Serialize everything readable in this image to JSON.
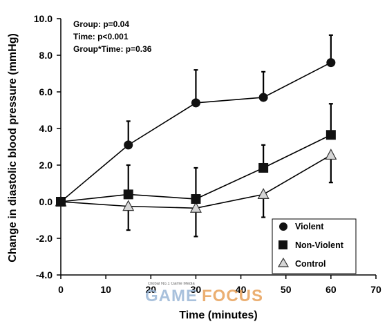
{
  "chart_data": {
    "type": "line",
    "xlabel": "Time (minutes)",
    "ylabel": "Change in diastolic blood pressure (mmHg)",
    "xlim": [
      0,
      70
    ],
    "ylim": [
      -4.0,
      10.0
    ],
    "x_ticks": [
      "0",
      "10",
      "20",
      "30",
      "40",
      "50",
      "60",
      "70"
    ],
    "y_ticks": [
      "-4.0",
      "-2.0",
      "0.0",
      "2.0",
      "4.0",
      "6.0",
      "8.0",
      "10.0"
    ],
    "grid": false,
    "legend_position": "bottom-right",
    "annotations": [
      "Group: p=0.04",
      "Time: p<0.001",
      "Group*Time: p=0.36"
    ],
    "series": [
      {
        "name": "Violent",
        "marker": "circle",
        "x": [
          0,
          15,
          30,
          45,
          60
        ],
        "y": [
          0.0,
          3.1,
          5.4,
          5.7,
          7.6
        ],
        "error": [
          0,
          1.3,
          1.8,
          1.4,
          1.5
        ],
        "error_direction": "up"
      },
      {
        "name": "Non-Violent",
        "marker": "square",
        "x": [
          0,
          15,
          30,
          45,
          60
        ],
        "y": [
          0.0,
          0.4,
          0.15,
          1.85,
          3.65
        ],
        "error": [
          0,
          1.6,
          1.7,
          1.25,
          1.7
        ],
        "error_direction": "up"
      },
      {
        "name": "Control",
        "marker": "triangle",
        "x": [
          0,
          15,
          30,
          45,
          60
        ],
        "y": [
          0.0,
          -0.25,
          -0.35,
          0.4,
          2.55
        ],
        "error": [
          0,
          1.3,
          1.55,
          1.25,
          1.5
        ],
        "error_direction": "down"
      }
    ]
  },
  "watermark": {
    "tagline": "Global No.1 Game Media",
    "word_a": "GAME",
    "word_b": "FOCUS",
    "color_a": "#9bb7d6",
    "color_b": "#e8a25a"
  },
  "colors": {
    "line": "#000000",
    "circle_fill": "#111111",
    "square_fill": "#111111",
    "triangle_fill": "#d6d6d6",
    "triangle_stroke": "#333333"
  }
}
